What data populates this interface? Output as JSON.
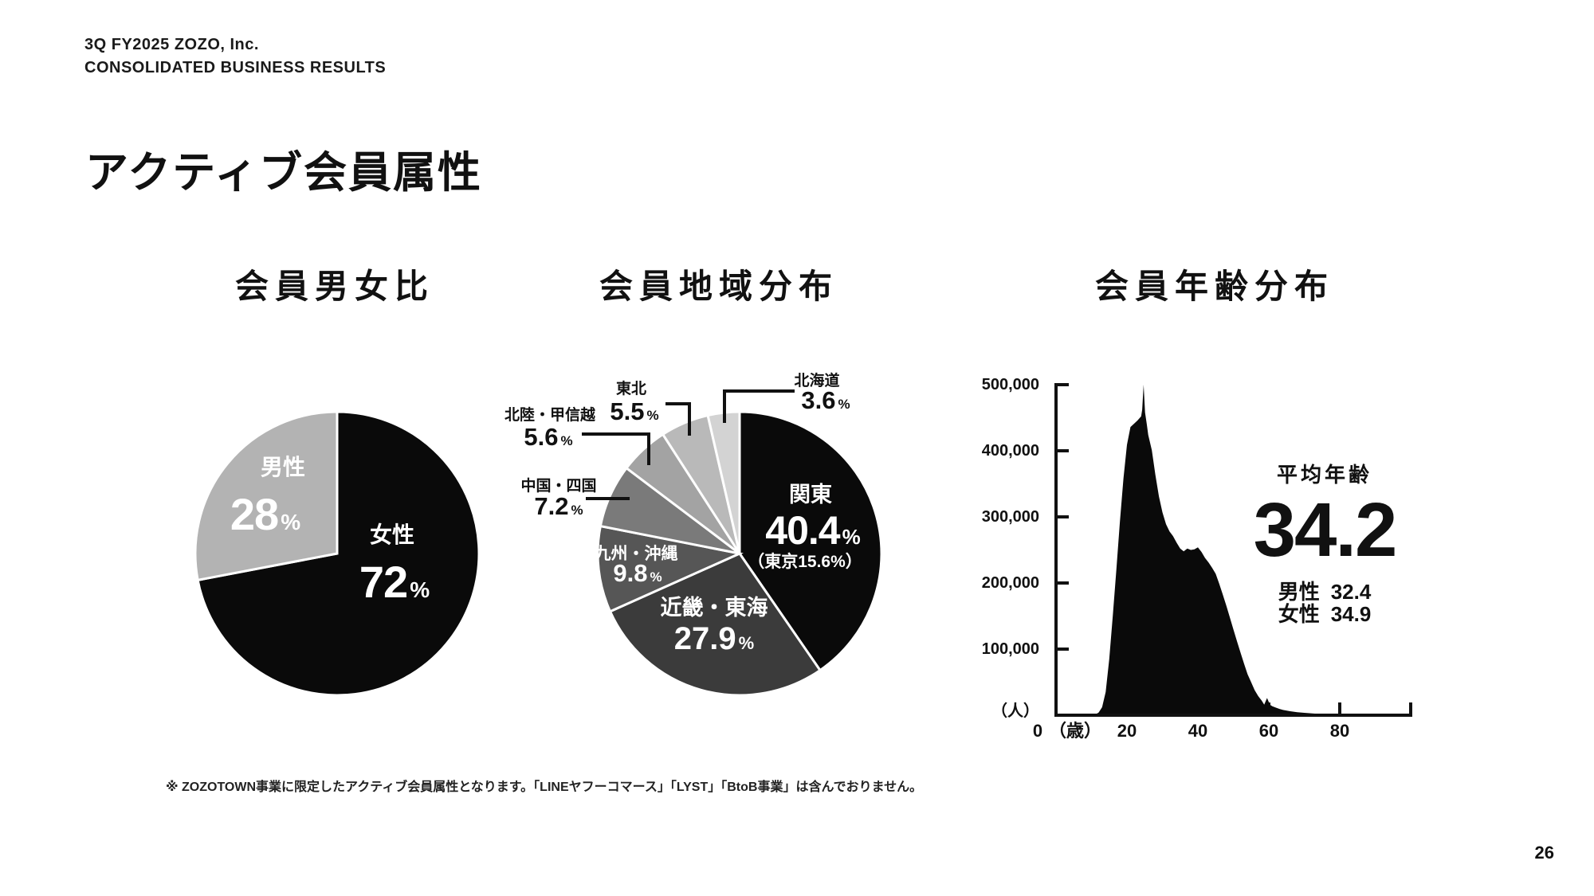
{
  "header": {
    "line1": "3Q FY2025 ZOZO, Inc.",
    "line2": "CONSOLIDATED BUSINESS RESULTS"
  },
  "page_title": "アクティブ会員属性",
  "footnote": "※ ZOZOTOWN事業に限定したアクティブ会員属性となります。「LINEヤフーコマース」「LYST」「BtoB事業」は含んでおりません。",
  "page_number": "26",
  "chart_data": [
    {
      "id": "gender",
      "type": "pie",
      "title": "会員男女比",
      "unit": "%",
      "start_angle": "top-clockwise",
      "slices": [
        {
          "label": "女性",
          "value": 72,
          "color": "#0a0a0a",
          "text_color": "#ffffff"
        },
        {
          "label": "男性",
          "value": 28,
          "color": "#b3b3b3",
          "text_color": "#ffffff"
        }
      ]
    },
    {
      "id": "region",
      "type": "pie",
      "title": "会員地域分布",
      "unit": "%",
      "start_angle": "top-clockwise",
      "slices": [
        {
          "label": "関東",
          "value": 40.4,
          "note": "（東京15.6%）",
          "color": "#0a0a0a",
          "text_color": "#ffffff"
        },
        {
          "label": "近畿・東海",
          "value": 27.9,
          "color": "#3b3b3b",
          "text_color": "#ffffff"
        },
        {
          "label": "九州・沖縄",
          "value": 9.8,
          "color": "#565656",
          "text_color": "#ffffff"
        },
        {
          "label": "中国・四国",
          "value": 7.2,
          "color": "#7a7a7a",
          "text_color": "#111111"
        },
        {
          "label": "北陸・甲信越",
          "value": 5.6,
          "color": "#a3a3a3",
          "text_color": "#111111"
        },
        {
          "label": "東北",
          "value": 5.5,
          "color": "#b9b9b9",
          "text_color": "#111111"
        },
        {
          "label": "北海道",
          "value": 3.6,
          "color": "#d3d3d3",
          "text_color": "#111111"
        }
      ]
    },
    {
      "id": "age",
      "type": "area",
      "title": "会員年齢分布",
      "color": "#0a0a0a",
      "xlabel": "（歳）",
      "ylabel": "（人）",
      "xlim": [
        0,
        100
      ],
      "ylim": [
        0,
        500000
      ],
      "x_axis_labels": [
        "0",
        "（歳）",
        "20",
        "40",
        "60",
        "80"
      ],
      "x_ticks": [
        20,
        40,
        60,
        80,
        100
      ],
      "y_ticks": [
        100000,
        200000,
        300000,
        400000,
        500000
      ],
      "y_tick_labels": [
        "100,000",
        "200,000",
        "300,000",
        "400,000",
        "500,000"
      ],
      "points": [
        [
          10,
          0
        ],
        [
          11,
          1000
        ],
        [
          12,
          4000
        ],
        [
          13,
          12000
        ],
        [
          14,
          35000
        ],
        [
          15,
          85000
        ],
        [
          16,
          150000
        ],
        [
          17,
          220000
        ],
        [
          18,
          292000
        ],
        [
          19,
          358000
        ],
        [
          20,
          409000
        ],
        [
          21,
          436000
        ],
        [
          22,
          441000
        ],
        [
          23,
          446000
        ],
        [
          24,
          452000
        ],
        [
          24.3,
          462000
        ],
        [
          24.7,
          500000
        ],
        [
          25.1,
          458000
        ],
        [
          25.6,
          440000
        ],
        [
          26,
          424000
        ],
        [
          27,
          401000
        ],
        [
          28,
          364000
        ],
        [
          29,
          331000
        ],
        [
          30,
          307000
        ],
        [
          31,
          289000
        ],
        [
          32,
          278000
        ],
        [
          33,
          271000
        ],
        [
          34,
          261000
        ],
        [
          35,
          252000
        ],
        [
          36,
          248000
        ],
        [
          37,
          252000
        ],
        [
          38,
          250000
        ],
        [
          39,
          251000
        ],
        [
          40,
          254000
        ],
        [
          41,
          247000
        ],
        [
          42,
          238000
        ],
        [
          43,
          231000
        ],
        [
          44,
          223000
        ],
        [
          45,
          214000
        ],
        [
          46,
          199000
        ],
        [
          47,
          183000
        ],
        [
          48,
          166000
        ],
        [
          49,
          148000
        ],
        [
          50,
          130000
        ],
        [
          51,
          112000
        ],
        [
          52,
          95000
        ],
        [
          53,
          78000
        ],
        [
          54,
          62000
        ],
        [
          55,
          50000
        ],
        [
          56,
          38000
        ],
        [
          57,
          29000
        ],
        [
          58,
          22000
        ],
        [
          58.7,
          16000
        ],
        [
          59.5,
          26000
        ],
        [
          60.3,
          16000
        ],
        [
          61,
          13500
        ],
        [
          62,
          11500
        ],
        [
          63,
          9500
        ],
        [
          64,
          8000
        ],
        [
          66,
          6000
        ],
        [
          68,
          4600
        ],
        [
          70,
          3600
        ],
        [
          73,
          2400
        ],
        [
          76,
          1500
        ],
        [
          80,
          800
        ],
        [
          84,
          400
        ],
        [
          88,
          200
        ],
        [
          92,
          80
        ],
        [
          96,
          0
        ]
      ],
      "annotations": {
        "avg_label": "平均年齢",
        "avg_value": "34.2",
        "male_label": "男性",
        "male_value": "32.4",
        "female_label": "女性",
        "female_value": "34.9"
      }
    }
  ]
}
